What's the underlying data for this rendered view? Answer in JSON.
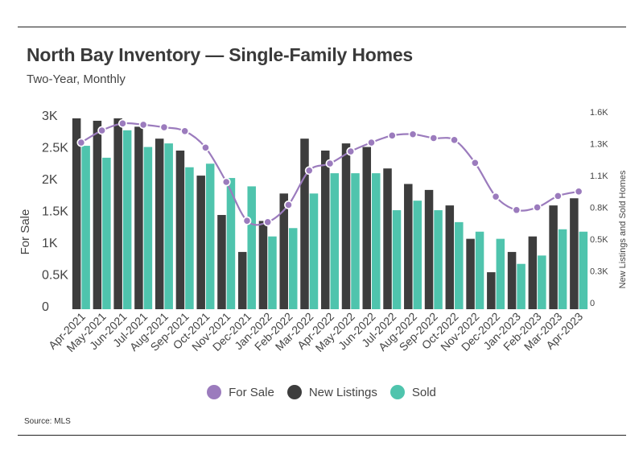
{
  "page": {
    "title": "North Bay Inventory — Single-Family Homes",
    "subtitle": "Two-Year, Monthly",
    "source": "Source:  MLS"
  },
  "colors": {
    "for_sale": "#9b7bbd",
    "new_listings": "#3d3d3d",
    "sold": "#4fc4ad"
  },
  "chart_data": {
    "type": "bar",
    "title": "North Bay Inventory — Single-Family Homes",
    "subtitle": "Two-Year, Monthly",
    "categories": [
      "Apr-2021",
      "May-2021",
      "Jun-2021",
      "Jul-2021",
      "Aug-2021",
      "Sep-2021",
      "Oct-2021",
      "Nov-2021",
      "Dec-2021",
      "Jan-2022",
      "Feb-2022",
      "Mar-2022",
      "Apr-2022",
      "May-2022",
      "Jun-2022",
      "Jul-2022",
      "Aug-2022",
      "Sep-2022",
      "Oct-2022",
      "Nov-2022",
      "Dec-2022",
      "Jan-2023",
      "Feb-2023",
      "Mar-2023",
      "Apr-2023"
    ],
    "ylabel": "For Sale",
    "y2label": "New Listings and Sold Homes",
    "ylim": [
      0,
      3000
    ],
    "y2lim": [
      0,
      1600
    ],
    "yticks": [
      "0",
      "0.5K",
      "1K",
      "1.5K",
      "2K",
      "2.5K",
      "3K"
    ],
    "y2ticks": [
      "0",
      "0.3K",
      "0.5K",
      "0.8K",
      "1.1K",
      "1.3K",
      "1.6K"
    ],
    "legend_position": "bottom",
    "grid": false,
    "series": [
      {
        "name": "For Sale",
        "type": "line",
        "axis": "left",
        "values": [
          2620,
          2810,
          2920,
          2900,
          2860,
          2800,
          2540,
          2000,
          1390,
          1370,
          1640,
          2180,
          2290,
          2480,
          2620,
          2730,
          2750,
          2690,
          2660,
          2300,
          1770,
          1560,
          1600,
          1780,
          1850
        ]
      },
      {
        "name": "New Listings",
        "type": "bar",
        "axis": "right",
        "values": [
          1600,
          1580,
          1600,
          1530,
          1430,
          1330,
          1120,
          790,
          480,
          740,
          970,
          1430,
          1330,
          1390,
          1360,
          1180,
          1050,
          1000,
          870,
          590,
          310,
          480,
          610,
          870,
          930
        ]
      },
      {
        "name": "Sold",
        "type": "bar",
        "axis": "right",
        "values": [
          1370,
          1270,
          1500,
          1360,
          1390,
          1190,
          1220,
          1100,
          1030,
          610,
          680,
          970,
          1140,
          1140,
          1140,
          830,
          910,
          830,
          730,
          650,
          590,
          380,
          450,
          670,
          650
        ]
      }
    ]
  }
}
